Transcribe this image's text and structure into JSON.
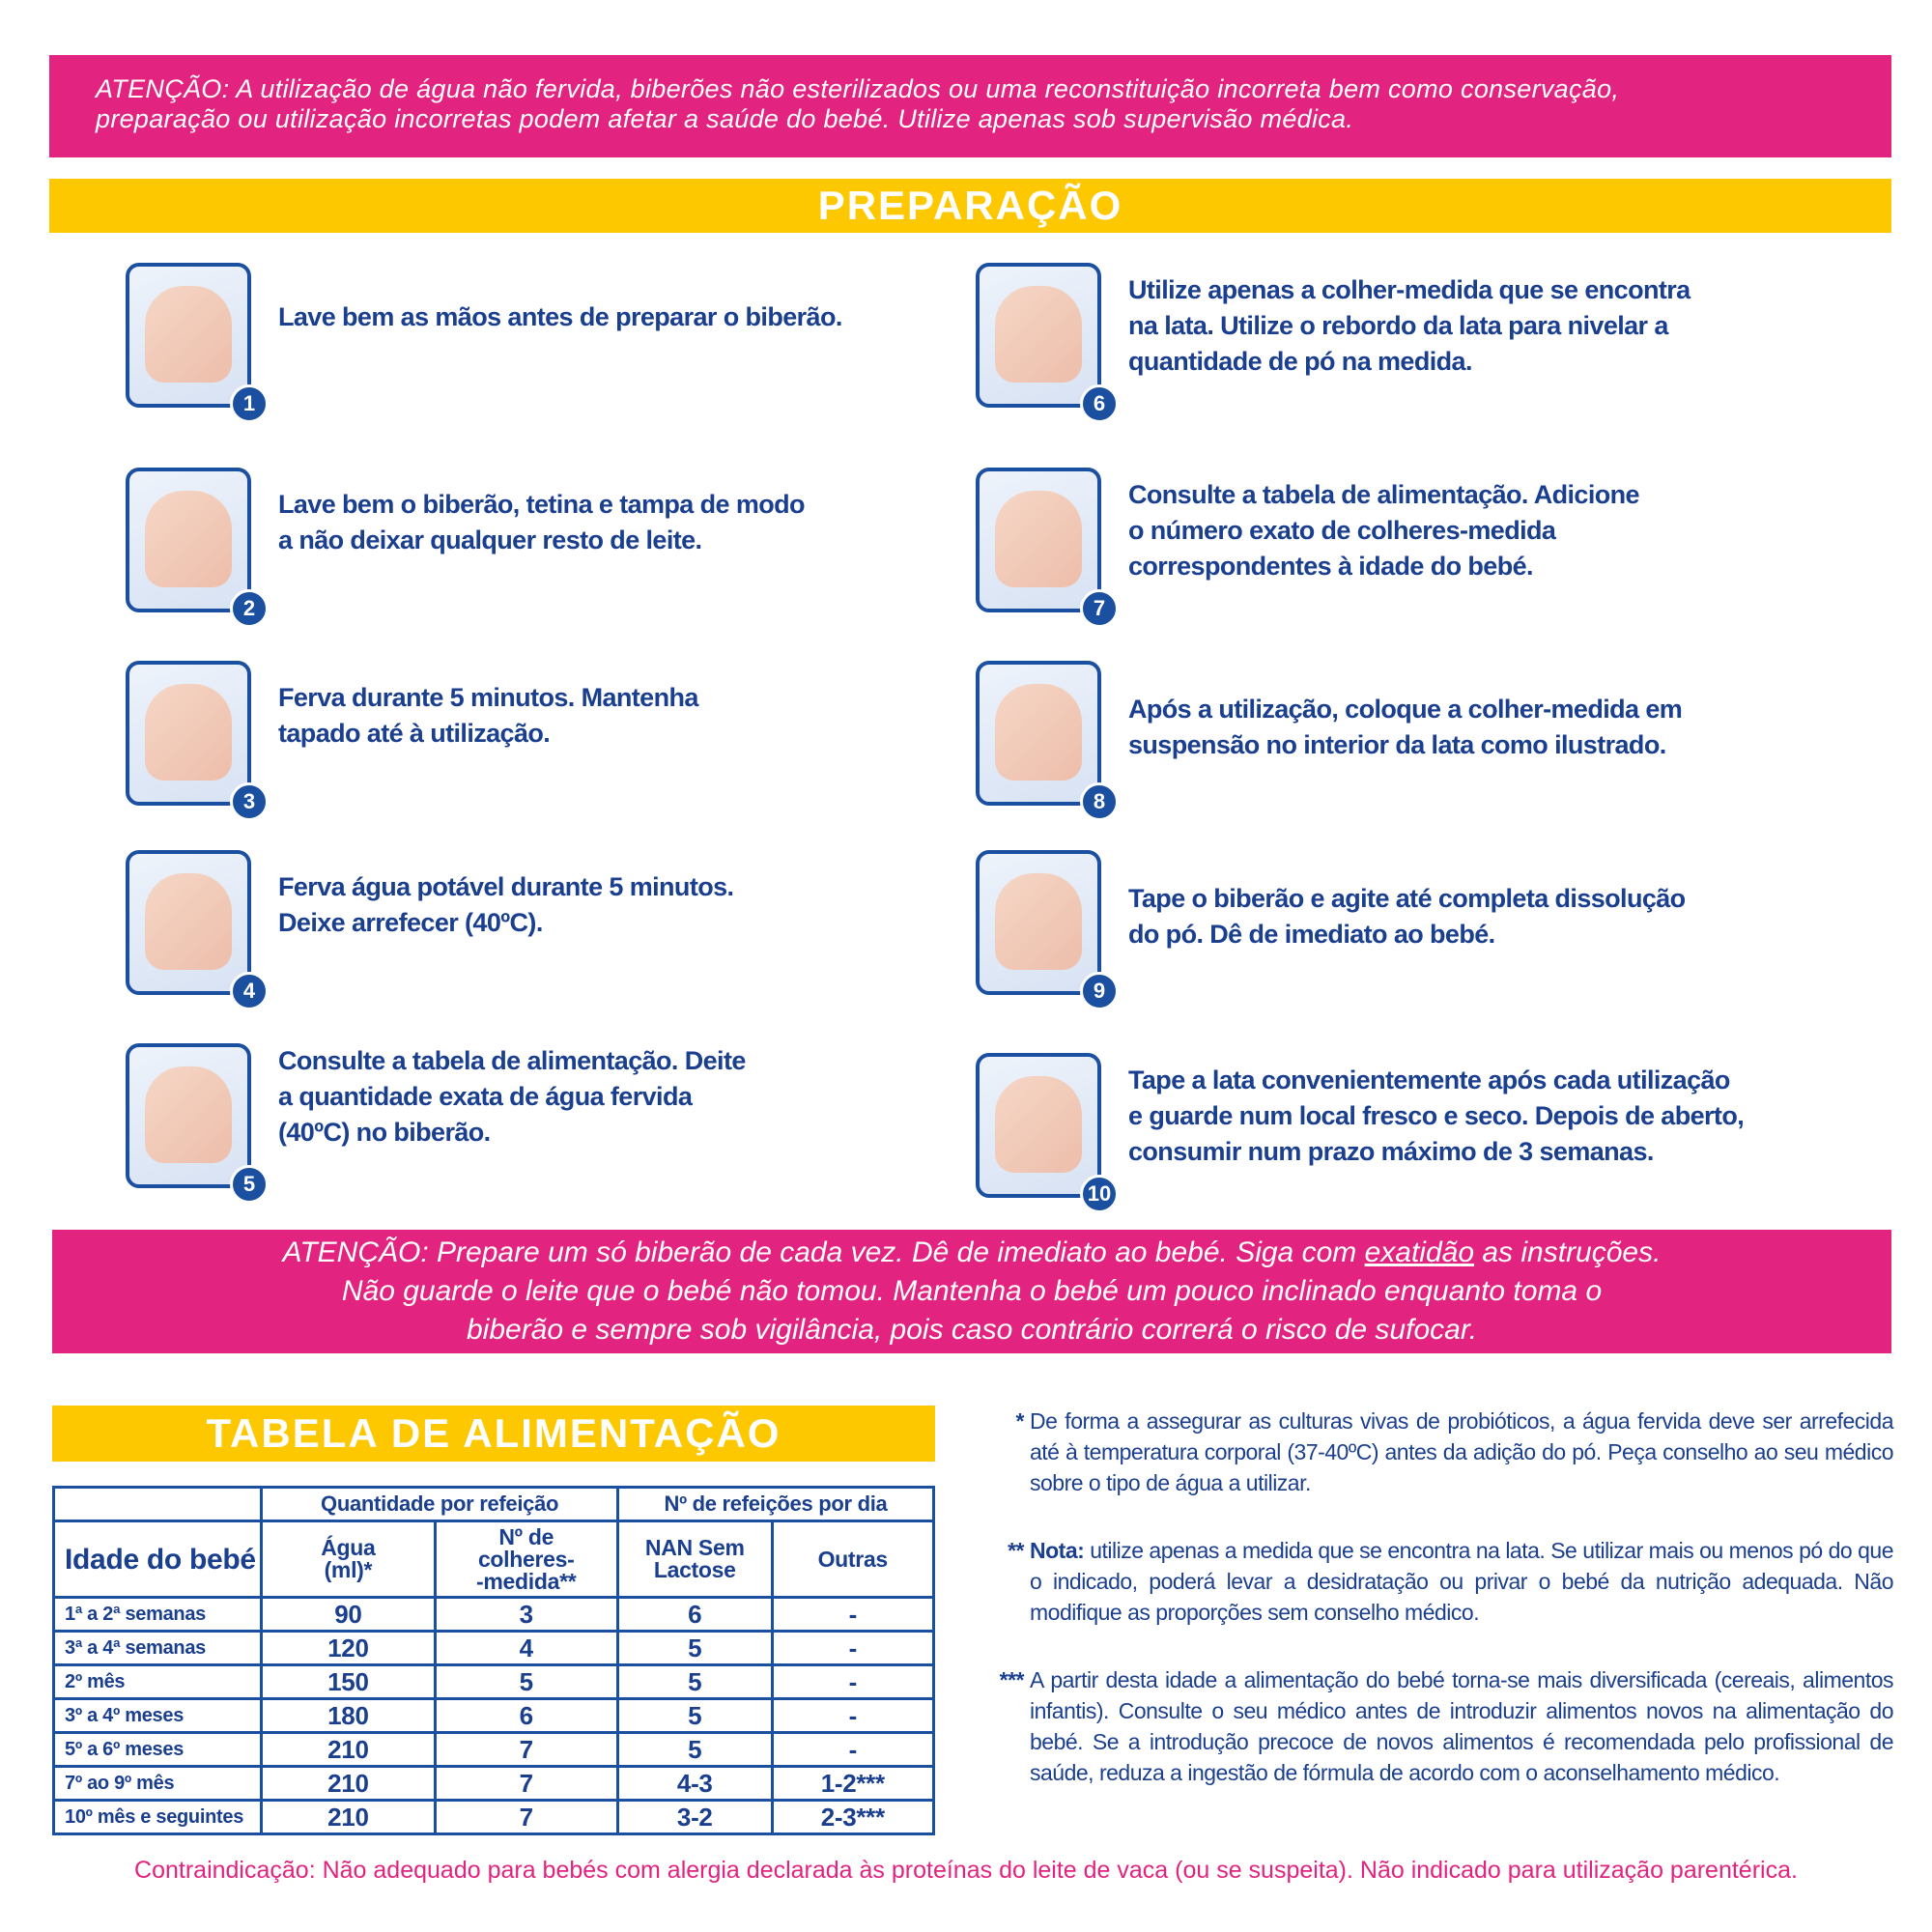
{
  "warning_top": {
    "lines": [
      "ATENÇÃO: A utilização de água não fervida, biberões não esterilizados ou uma reconstituição incorreta bem como conservação,",
      "preparação ou utilização incorretas podem afetar a saúde do bebé. Utilize apenas sob supervisão médica."
    ]
  },
  "preparation": {
    "title": "PREPARAÇÃO",
    "steps": [
      {
        "number": "1",
        "icon": "hand-washing-icon",
        "lines": [
          "Lave bem as mãos antes de preparar o biberão."
        ]
      },
      {
        "number": "2",
        "icon": "bottle-cleaning-icon",
        "lines": [
          "Lave bem o biberão, tetina e tampa de modo",
          "a não deixar qualquer resto de leite."
        ]
      },
      {
        "number": "3",
        "icon": "boiling-pot-timer-icon",
        "lines": [
          "Ferva durante 5 minutos. Mantenha",
          "tapado até à utilização."
        ]
      },
      {
        "number": "4",
        "icon": "kettle-timer-icon",
        "lines": [
          "Ferva água potável durante 5 minutos.",
          "Deixe arrefecer (40ºC)."
        ]
      },
      {
        "number": "5",
        "icon": "pour-water-bottle-icon",
        "lines": [
          "Consulte a tabela de alimentação. Deite",
          "a quantidade exata de água fervida",
          "(40ºC) no biberão."
        ]
      },
      {
        "number": "6",
        "icon": "scoop-leveling-icon",
        "lines": [
          "Utilize apenas a colher-medida que se encontra",
          "na lata. Utilize o rebordo da lata para nivelar a",
          "quantidade de pó na medida."
        ]
      },
      {
        "number": "7",
        "icon": "add-powder-bottle-icon",
        "lines": [
          "Consulte a tabela de alimentação. Adicione",
          "o número exato de colheres-medida",
          "correspondentes à idade do bebé."
        ]
      },
      {
        "number": "8",
        "icon": "scoop-storage-icon",
        "lines": [
          "Após a utilização, coloque a colher-medida em",
          "suspensão no interior da lata como ilustrado."
        ]
      },
      {
        "number": "9",
        "icon": "shake-bottle-icon",
        "lines": [
          "Tape o biberão e agite até completa dissolução",
          "do pó. Dê de imediato ao bebé."
        ]
      },
      {
        "number": "10",
        "icon": "close-can-icon",
        "lines": [
          "Tape a lata convenientemente após cada utilização",
          "e guarde num local fresco e seco. Depois de aberto,",
          "consumir num prazo máximo de 3 semanas."
        ]
      }
    ]
  },
  "warning_middle": {
    "line1_pre": "ATENÇÃO: Prepare um só biberão de cada vez. Dê de imediato ao bebé. Siga com ",
    "line1_underlined": "exatidão",
    "line1_post": " as instruções.",
    "line2": "Não guarde o leite que o bebé não tomou. Mantenha o bebé um pouco inclinado enquanto toma o",
    "line3": "biberão e sempre sob vigilância, pois caso contrário correrá o risco de sufocar."
  },
  "feeding_table": {
    "title": "TABELA DE ALIMENTAÇÃO",
    "group_headers": [
      "Quantidade por refeição",
      "Nº de refeições por dia"
    ],
    "columns": [
      "Idade do bebé",
      "Água (ml)*",
      "Nº de colheres--medida**",
      "NAN Sem Lactose",
      "Outras"
    ],
    "col_lines": {
      "agua": [
        "Água",
        "(ml)*"
      ],
      "colheres": [
        "Nº de",
        "colheres-",
        "-medida**"
      ],
      "nan": [
        "NAN Sem",
        "Lactose"
      ]
    },
    "rows": [
      [
        "1ª a 2ª semanas",
        "90",
        "3",
        "6",
        "-"
      ],
      [
        "3ª a 4ª semanas",
        "120",
        "4",
        "5",
        "-"
      ],
      [
        "2º mês",
        "150",
        "5",
        "5",
        "-"
      ],
      [
        "3º a 4º meses",
        "180",
        "6",
        "5",
        "-"
      ],
      [
        "5º a 6º meses",
        "210",
        "7",
        "5",
        "-"
      ],
      [
        "7º ao 9º mês",
        "210",
        "7",
        "4-3",
        "1-2***"
      ],
      [
        "10º mês e seguintes",
        "210",
        "7",
        "3-2",
        "2-3***"
      ]
    ]
  },
  "footnotes": [
    {
      "mark": "*",
      "bold": "",
      "text": "De forma a assegurar as culturas vivas de probióticos, a água fervida deve ser arrefecida até à temperatura corporal (37-40ºC) antes da adição do pó. Peça conselho ao seu médico sobre o tipo de água a utilizar."
    },
    {
      "mark": "**",
      "bold": "Nota:",
      "text": " utilize apenas a medida que se encontra na lata. Se utilizar mais ou menos pó do que o indicado, poderá levar a desidratação ou privar o bebé da nutrição adequada. Não modifique as proporções sem conselho médico."
    },
    {
      "mark": "***",
      "bold": "",
      "text": "A partir desta idade a alimentação do bebé torna-se mais diversificada (cereais, alimentos infantis). Consulte o seu médico antes de introduzir alimentos novos na alimentação do bebé. Se a introdução precoce de novos alimentos é recomendada pelo profissional de saúde, reduza a ingestão de fórmula de acordo com o aconselhamento médico."
    }
  ],
  "contraindication": "Contraindicação: Não adequado para bebés com alergia declarada às proteínas do leite de vaca (ou se suspeita). Não indicado para utilização parentérica.",
  "colors": {
    "pink": "#e2237f",
    "yellow": "#fdc800",
    "blue": "#1b3f8f"
  }
}
